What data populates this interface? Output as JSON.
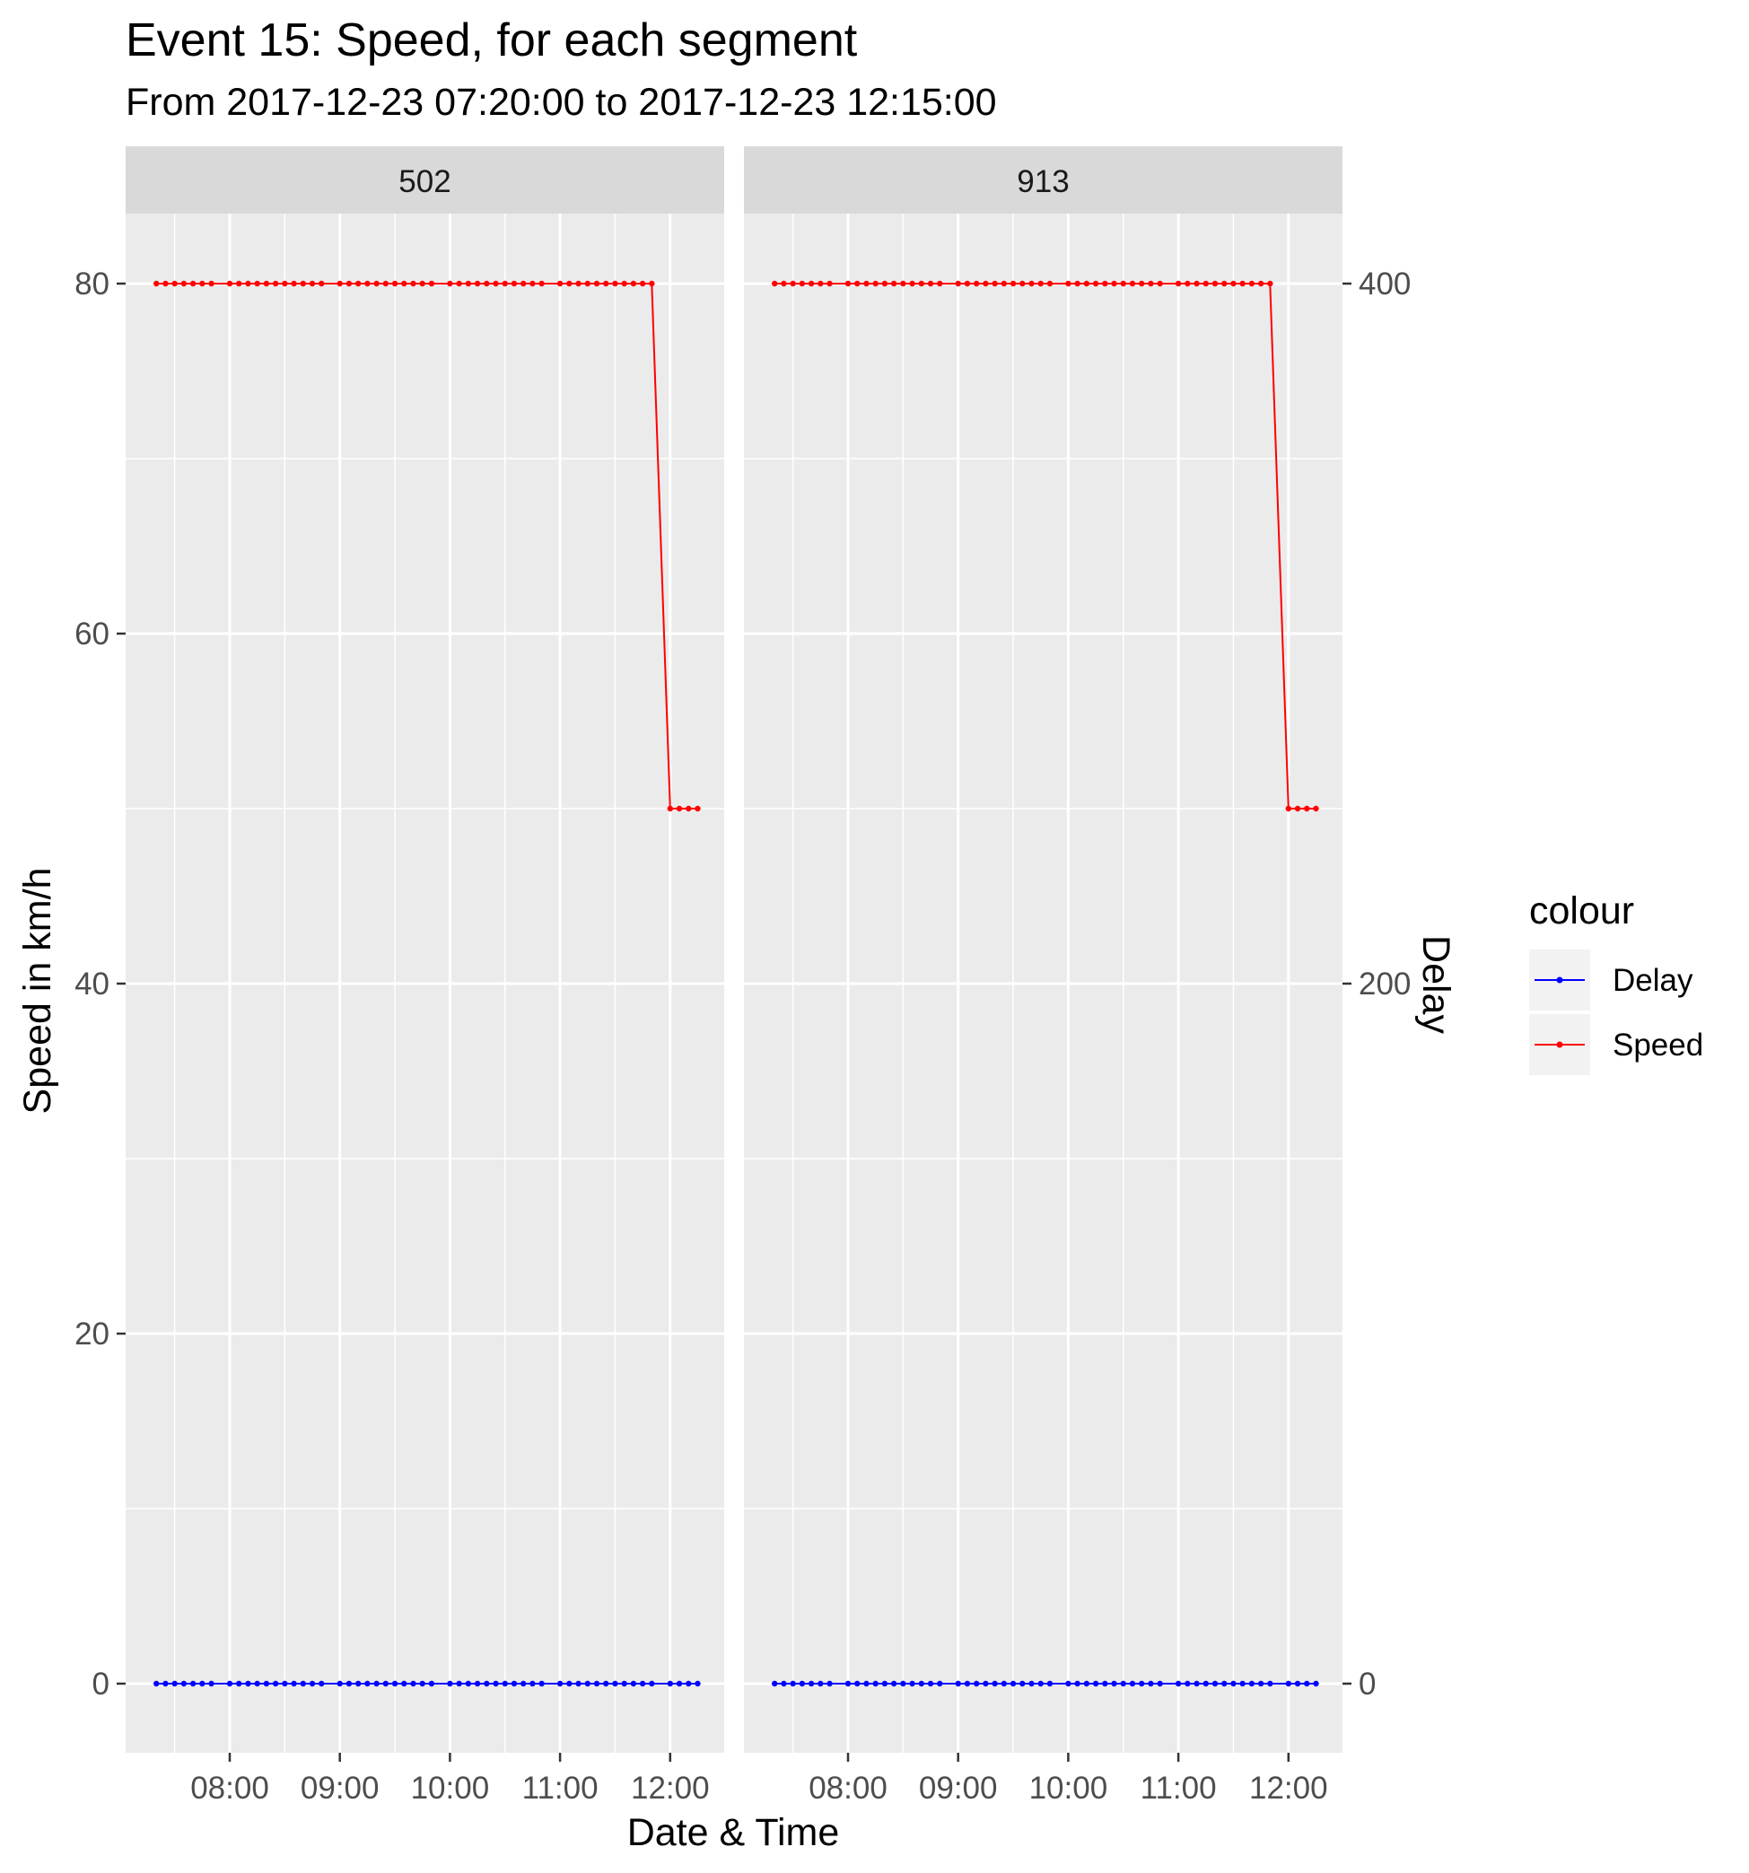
{
  "chart_data": {
    "type": "line",
    "title": "Event 15: Speed, for each segment",
    "subtitle": "From 2017-12-23 07:20:00 to 2017-12-23 12:15:00",
    "xlabel": "Date & Time",
    "ylabel": "Speed in km/h",
    "y2label": "Delay",
    "x_tick_labels": [
      "08:00",
      "09:00",
      "10:00",
      "11:00",
      "12:00"
    ],
    "y_ticks": [
      0,
      20,
      40,
      60,
      80
    ],
    "y2_ticks": [
      0,
      200,
      400
    ],
    "ylim": [
      -4,
      84
    ],
    "y2_scale": 5.0,
    "grid": true,
    "legend": {
      "title": "colour",
      "position": "right",
      "entries": [
        {
          "label": "Delay",
          "color": "#0000ff"
        },
        {
          "label": "Speed",
          "color": "#ff0000"
        }
      ]
    },
    "colors": {
      "Delay": "#0000ff",
      "Speed": "#ff0000"
    },
    "facets": [
      {
        "label": "502",
        "x": [
          "07:20",
          "07:25",
          "07:30",
          "07:35",
          "07:40",
          "07:45",
          "07:50",
          "08:00",
          "08:05",
          "08:10",
          "08:15",
          "08:20",
          "08:25",
          "08:30",
          "08:35",
          "08:40",
          "08:45",
          "08:50",
          "09:00",
          "09:05",
          "09:10",
          "09:15",
          "09:20",
          "09:25",
          "09:30",
          "09:35",
          "09:40",
          "09:45",
          "09:50",
          "10:00",
          "10:05",
          "10:10",
          "10:15",
          "10:20",
          "10:25",
          "10:30",
          "10:35",
          "10:40",
          "10:45",
          "10:50",
          "11:00",
          "11:05",
          "11:10",
          "11:15",
          "11:20",
          "11:25",
          "11:30",
          "11:35",
          "11:40",
          "11:45",
          "11:50",
          "12:00",
          "12:05",
          "12:10",
          "12:15"
        ],
        "series": [
          {
            "name": "Delay",
            "values": [
              0,
              0,
              0,
              0,
              0,
              0,
              0,
              0,
              0,
              0,
              0,
              0,
              0,
              0,
              0,
              0,
              0,
              0,
              0,
              0,
              0,
              0,
              0,
              0,
              0,
              0,
              0,
              0,
              0,
              0,
              0,
              0,
              0,
              0,
              0,
              0,
              0,
              0,
              0,
              0,
              0,
              0,
              0,
              0,
              0,
              0,
              0,
              0,
              0,
              0,
              0,
              0,
              0,
              0,
              0
            ]
          },
          {
            "name": "Speed",
            "values": [
              80,
              80,
              80,
              80,
              80,
              80,
              80,
              80,
              80,
              80,
              80,
              80,
              80,
              80,
              80,
              80,
              80,
              80,
              80,
              80,
              80,
              80,
              80,
              80,
              80,
              80,
              80,
              80,
              80,
              80,
              80,
              80,
              80,
              80,
              80,
              80,
              80,
              80,
              80,
              80,
              80,
              80,
              80,
              80,
              80,
              80,
              80,
              80,
              80,
              80,
              80,
              50,
              50,
              50,
              50
            ]
          }
        ]
      },
      {
        "label": "913",
        "x": [
          "07:20",
          "07:25",
          "07:30",
          "07:35",
          "07:40",
          "07:45",
          "07:50",
          "08:00",
          "08:05",
          "08:10",
          "08:15",
          "08:20",
          "08:25",
          "08:30",
          "08:35",
          "08:40",
          "08:45",
          "08:50",
          "09:00",
          "09:05",
          "09:10",
          "09:15",
          "09:20",
          "09:25",
          "09:30",
          "09:35",
          "09:40",
          "09:45",
          "09:50",
          "10:00",
          "10:05",
          "10:10",
          "10:15",
          "10:20",
          "10:25",
          "10:30",
          "10:35",
          "10:40",
          "10:45",
          "10:50",
          "11:00",
          "11:05",
          "11:10",
          "11:15",
          "11:20",
          "11:25",
          "11:30",
          "11:35",
          "11:40",
          "11:45",
          "11:50",
          "12:00",
          "12:05",
          "12:10",
          "12:15"
        ],
        "series": [
          {
            "name": "Delay",
            "values": [
              0,
              0,
              0,
              0,
              0,
              0,
              0,
              0,
              0,
              0,
              0,
              0,
              0,
              0,
              0,
              0,
              0,
              0,
              0,
              0,
              0,
              0,
              0,
              0,
              0,
              0,
              0,
              0,
              0,
              0,
              0,
              0,
              0,
              0,
              0,
              0,
              0,
              0,
              0,
              0,
              0,
              0,
              0,
              0,
              0,
              0,
              0,
              0,
              0,
              0,
              0,
              0,
              0,
              0,
              0
            ]
          },
          {
            "name": "Speed",
            "values": [
              80,
              80,
              80,
              80,
              80,
              80,
              80,
              80,
              80,
              80,
              80,
              80,
              80,
              80,
              80,
              80,
              80,
              80,
              80,
              80,
              80,
              80,
              80,
              80,
              80,
              80,
              80,
              80,
              80,
              80,
              80,
              80,
              80,
              80,
              80,
              80,
              80,
              80,
              80,
              80,
              80,
              80,
              80,
              80,
              80,
              80,
              80,
              80,
              80,
              80,
              80,
              50,
              50,
              50,
              50
            ]
          }
        ]
      }
    ]
  }
}
